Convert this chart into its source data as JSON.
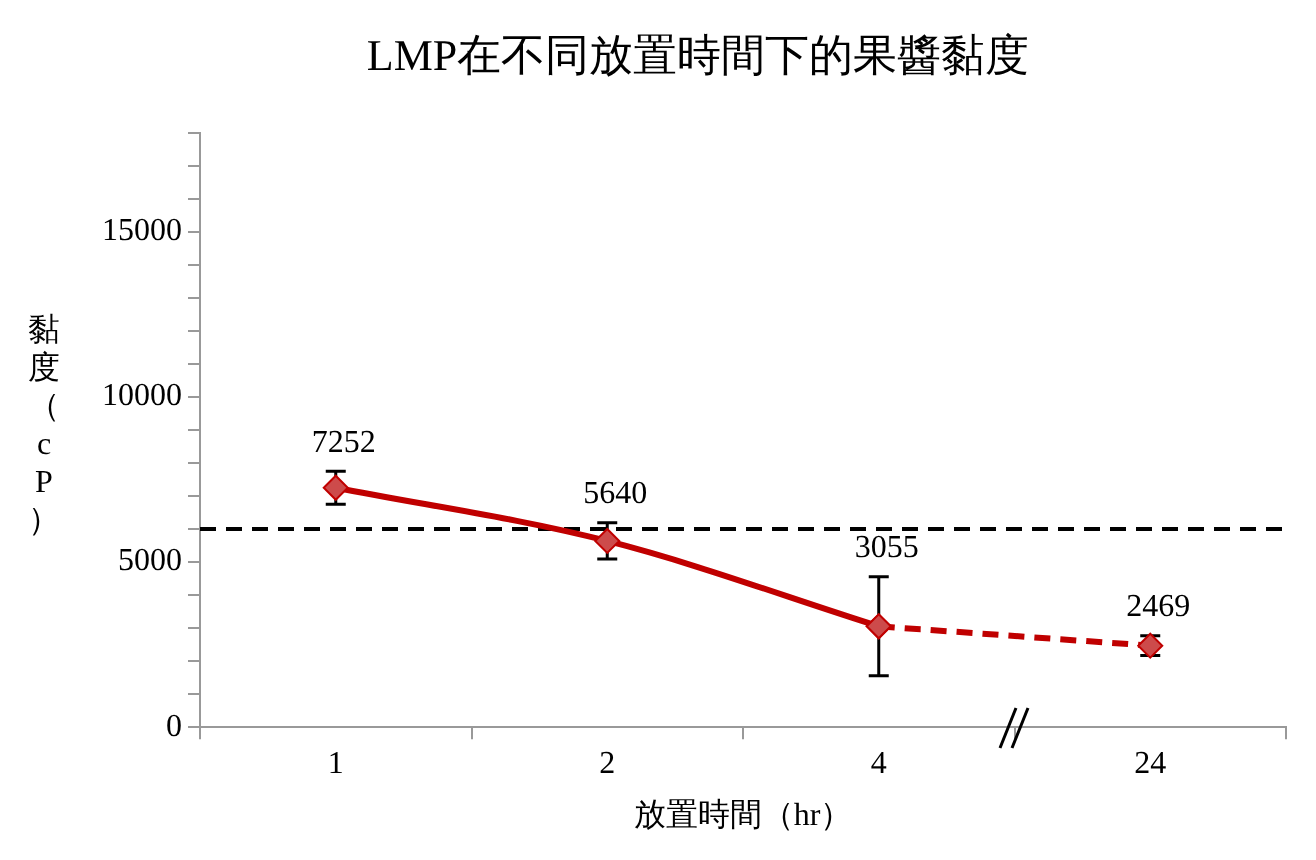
{
  "chart_data": {
    "type": "line",
    "title": "LMP在不同放置時間下的果醬黏度",
    "xlabel": "放置時間（hr）",
    "ylabel": "黏度（cP）",
    "categories": [
      "1",
      "2",
      "4",
      "24"
    ],
    "series": [
      {
        "color": "#c00000",
        "values": [
          7252,
          5640,
          3055,
          null
        ],
        "value_labels": [
          "7252",
          "5640",
          "3055",
          null
        ],
        "errors": [
          500,
          550,
          1500,
          null
        ],
        "line_style": "solid"
      },
      {
        "color": "#c00000",
        "values": [
          null,
          null,
          3055,
          2469
        ],
        "value_labels": [
          null,
          null,
          null,
          "2469"
        ],
        "errors": [
          null,
          null,
          null,
          300
        ],
        "line_style": "dashed"
      }
    ],
    "marker": "diamond",
    "ylim": [
      0,
      18000
    ],
    "yticks": [
      0,
      {
        "value": 1000,
        "label": null
      },
      {
        "value": 2000,
        "label": null
      },
      {
        "value": 3000,
        "label": null
      },
      {
        "value": 4000,
        "label": null
      },
      5000,
      {
        "value": 6000,
        "label": null
      },
      {
        "value": 7000,
        "label": null
      },
      {
        "value": 8000,
        "label": null
      },
      {
        "value": 9000,
        "label": null
      },
      10000,
      {
        "value": 11000,
        "label": null
      },
      {
        "value": 12000,
        "label": null
      },
      {
        "value": 13000,
        "label": null
      },
      {
        "value": 14000,
        "label": null
      },
      15000,
      {
        "value": 16000,
        "label": null
      },
      {
        "value": 17000,
        "label": null
      },
      {
        "value": 18000,
        "label": null
      }
    ],
    "ref_lines": [
      {
        "axis": "y",
        "value": 6000,
        "line_style": "dashed",
        "color": "#000000"
      }
    ],
    "grid": false,
    "legend": false
  }
}
